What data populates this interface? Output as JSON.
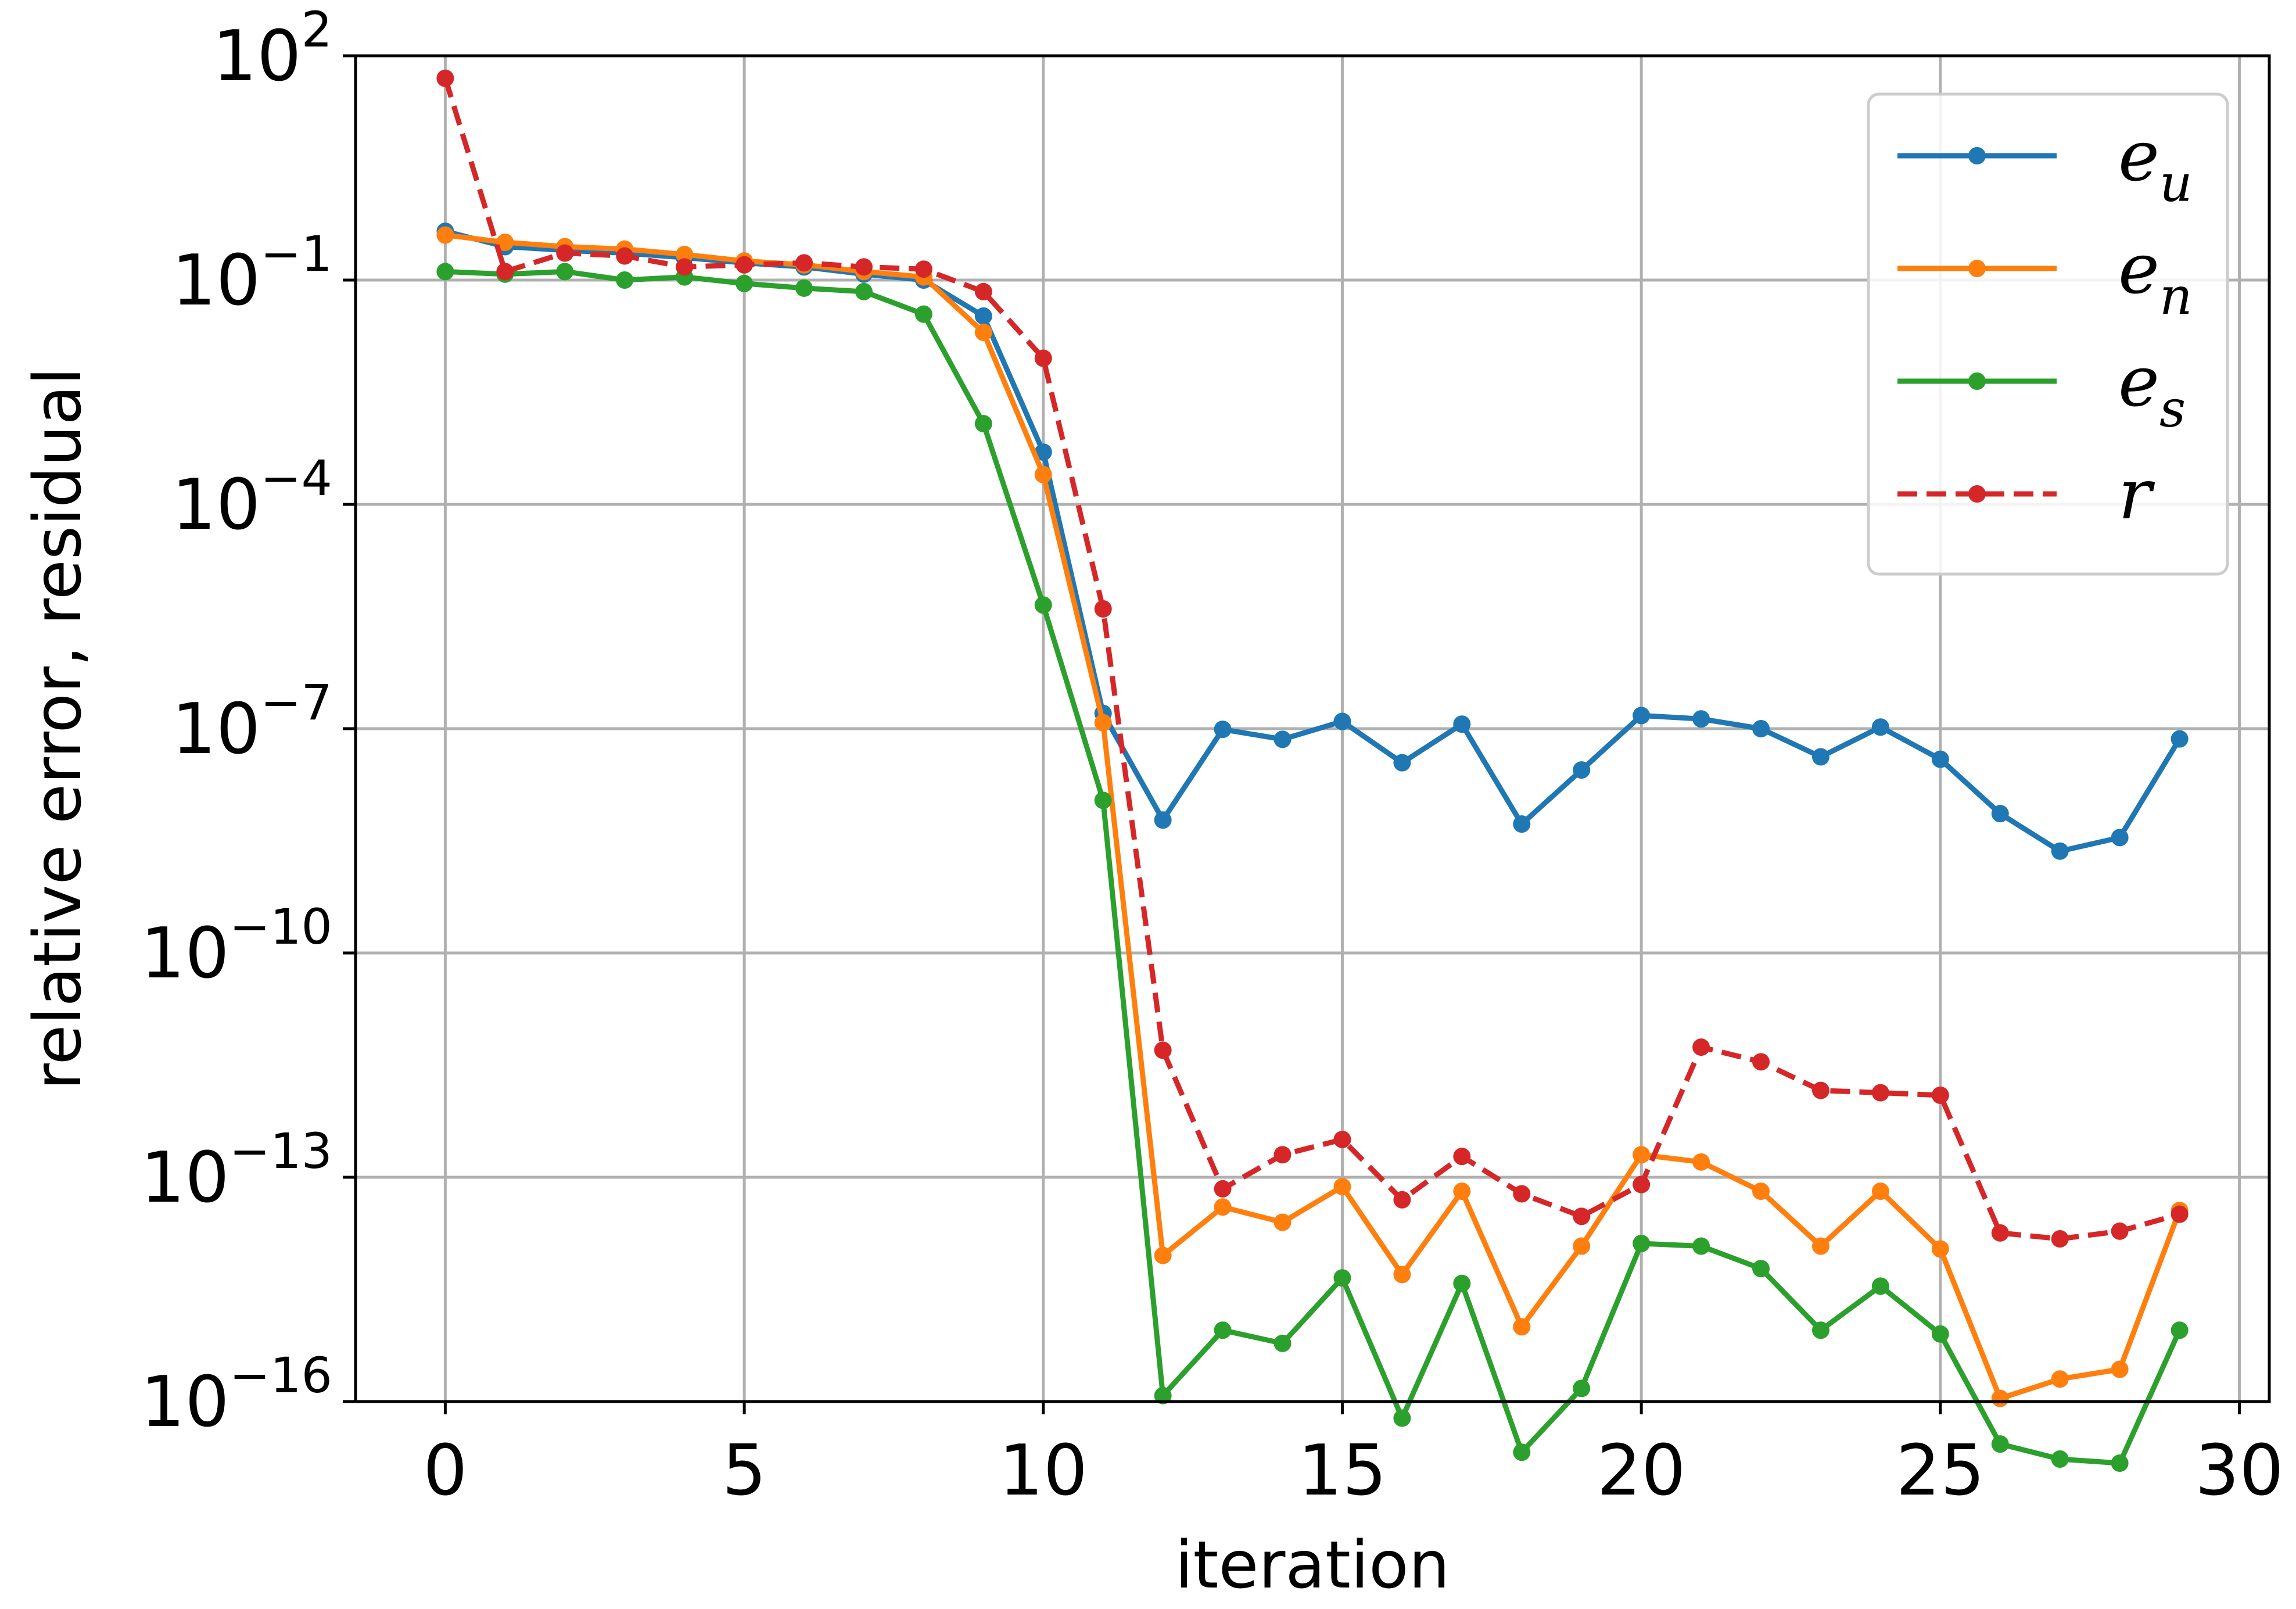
{
  "chart_data": {
    "type": "line",
    "title": "",
    "xlabel": "iteration",
    "ylabel": "relative error, residual",
    "xlim": [
      -1.5,
      30.5
    ],
    "ylim": [
      -16,
      2
    ],
    "yscale": "log",
    "grid": true,
    "legend_position": "top-right",
    "x_ticks": [
      0,
      5,
      10,
      15,
      20,
      25,
      30
    ],
    "y_ticks": [
      {
        "exp": 2,
        "base": "10",
        "sup": "2"
      },
      {
        "exp": -1,
        "base": "10",
        "sup": "−1"
      },
      {
        "exp": -4,
        "base": "10",
        "sup": "−4"
      },
      {
        "exp": -7,
        "base": "10",
        "sup": "−7"
      },
      {
        "exp": -10,
        "base": "10",
        "sup": "−10"
      },
      {
        "exp": -13,
        "base": "10",
        "sup": "−13"
      },
      {
        "exp": -16,
        "base": "10",
        "sup": "−16"
      }
    ],
    "x": [
      0,
      1,
      2,
      3,
      4,
      5,
      6,
      7,
      8,
      9,
      10,
      11,
      12,
      13,
      14,
      15,
      16,
      17,
      18,
      19,
      20,
      21,
      22,
      23,
      24,
      25,
      26,
      27,
      28,
      29
    ],
    "series": [
      {
        "name": "e",
        "subscript": "u",
        "color": "#1f77b4",
        "dashed": false,
        "values": [
          0.45,
          0.28,
          0.25,
          0.23,
          0.2,
          0.17,
          0.15,
          0.12,
          0.1,
          0.033,
          0.0005,
          1.6e-07,
          6e-09,
          9.8e-08,
          7.2e-08,
          1.25e-07,
          3.5e-08,
          1.15e-07,
          5.3e-09,
          2.8e-08,
          1.5e-07,
          1.35e-07,
          1e-07,
          4.2e-08,
          1.05e-07,
          3.9e-08,
          7.3e-09,
          2.3e-09,
          3.5e-09,
          7.3e-08
        ]
      },
      {
        "name": "e",
        "subscript": "n",
        "color": "#ff7f0e",
        "dashed": false,
        "values": [
          0.4,
          0.32,
          0.28,
          0.26,
          0.22,
          0.18,
          0.16,
          0.13,
          0.11,
          0.02,
          0.00025,
          1.2e-07,
          9e-15,
          4e-14,
          2.5e-14,
          7.5e-14,
          5e-15,
          6.5e-14,
          1e-15,
          1.2e-14,
          2e-13,
          1.6e-13,
          6.5e-14,
          1.2e-14,
          6.5e-14,
          1.1e-14,
          1.1e-16,
          2e-16,
          2.7e-16,
          3.6e-14
        ]
      },
      {
        "name": "e",
        "subscript": "s",
        "color": "#2ca02c",
        "dashed": false,
        "values": [
          0.13,
          0.12,
          0.13,
          0.1,
          0.11,
          0.09,
          0.078,
          0.07,
          0.035,
          0.0012,
          4.5e-06,
          1.1e-08,
          1.2e-16,
          9e-16,
          6e-16,
          4.5e-15,
          6e-17,
          3.8e-15,
          2.1e-17,
          1.5e-16,
          1.3e-14,
          1.2e-14,
          6e-15,
          9e-16,
          3.5e-15,
          8e-16,
          2.7e-17,
          1.7e-17,
          1.5e-17,
          9e-16
        ]
      },
      {
        "name": "r",
        "subscript": "",
        "color": "#d62728",
        "dashed": true,
        "values": [
          50,
          0.13,
          0.23,
          0.21,
          0.15,
          0.16,
          0.17,
          0.15,
          0.14,
          0.07,
          0.009,
          4e-06,
          5e-12,
          7e-14,
          2e-13,
          3.2e-13,
          5e-14,
          1.9e-13,
          6e-14,
          3e-14,
          8e-14,
          5.5e-12,
          3.5e-12,
          1.45e-12,
          1.35e-12,
          1.25e-12,
          1.8e-14,
          1.5e-14,
          1.9e-14,
          3.2e-14
        ]
      }
    ]
  }
}
